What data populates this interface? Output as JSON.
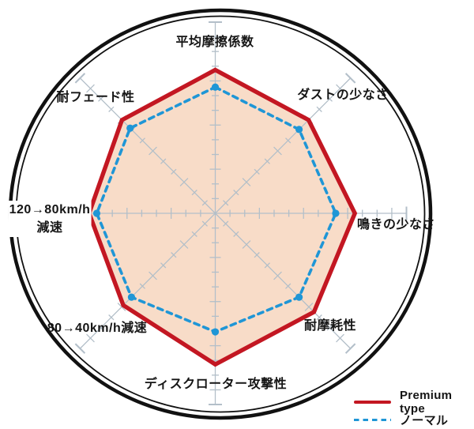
{
  "figure": {
    "background_color": "#ffffff",
    "description_colors": {
      "premium_red": "#c31722",
      "premium_fill": "#f8dcc8",
      "normal_blue": "#1f96d6",
      "grid_gray": "#b3bfc9",
      "ring_black": "#111111"
    }
  },
  "chart_data": {
    "type": "radar",
    "title": "",
    "axes_clockwise_from_top": [
      {
        "label": "平均摩擦係数"
      },
      {
        "label": "ダストの少なさ"
      },
      {
        "label": "鳴きの少なさ"
      },
      {
        "label": "耐摩耗性"
      },
      {
        "label": "ディスクローター攻撃性"
      },
      {
        "label": "80→40km/h減速"
      },
      {
        "label": "120→80km/h",
        "label2": "減速"
      },
      {
        "label": "耐フェード性"
      }
    ],
    "scale": {
      "min": 0,
      "max": 10,
      "ticks_per_axis": 13,
      "tick_labels_shown": false
    },
    "grid": {
      "style": "circular-ruler-ticks",
      "color": "#b3bfc9",
      "outer_ring_color": "#111111"
    },
    "series": [
      {
        "name": "Premium type",
        "line_style": "solid",
        "color": "#c31722",
        "fill_color": "#f8dcc8",
        "values": [
          7.5,
          6.9,
          7.3,
          7.3,
          7.9,
          6.8,
          6.6,
          6.9
        ]
      },
      {
        "name": "ノーマル",
        "line_style": "dashed",
        "color": "#1f96d6",
        "fill_color": null,
        "values": [
          6.6,
          6.2,
          6.3,
          6.2,
          6.2,
          6.2,
          6.2,
          6.3
        ]
      }
    ],
    "legend_position": "bottom-right"
  }
}
